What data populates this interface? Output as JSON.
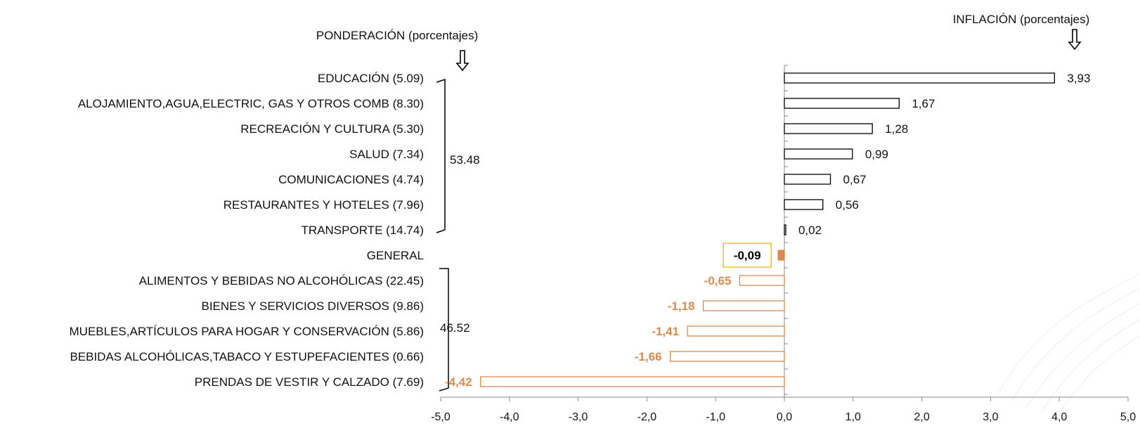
{
  "chart_data": {
    "type": "bar",
    "orientation": "horizontal",
    "annotations": {
      "left_header": "PONDERACIÓN (porcentajes)",
      "right_header": "INFLACIÓN (porcentajes)",
      "group_upper_total": "53.48",
      "group_lower_total": "46.52"
    },
    "categories": [
      "EDUCACIÓN (5.09)",
      "ALOJAMIENTO,AGUA,ELECTRIC, GAS Y OTROS COMB (8.30)",
      "RECREACIÓN Y CULTURA (5.30)",
      "SALUD (7.34)",
      "COMUNICACIONES (4.74)",
      "RESTAURANTES Y HOTELES (7.96)",
      "TRANSPORTE (14.74)",
      "GENERAL",
      "ALIMENTOS Y BEBIDAS NO ALCOHÓLICAS (22.45)",
      "BIENES Y SERVICIOS DIVERSOS (9.86)",
      "MUEBLES,ARTÍCULOS PARA HOGAR Y CONSERVACIÓN (5.86)",
      "BEBIDAS ALCOHÓLICAS,TABACO Y ESTUPEFACIENTES (0.66)",
      "PRENDAS DE VESTIR Y CALZADO (7.69)"
    ],
    "values": [
      3.93,
      1.67,
      1.28,
      0.99,
      0.67,
      0.56,
      0.02,
      -0.09,
      -0.65,
      -1.18,
      -1.41,
      -1.66,
      -4.42
    ],
    "value_labels": [
      "3,93",
      "1,67",
      "1,28",
      "0,99",
      "0,67",
      "0,56",
      "0,02",
      "-0,09",
      "-0,65",
      "-1,18",
      "-1,41",
      "-1,66",
      "-4,42"
    ],
    "xlim": [
      -5,
      5
    ],
    "xticks": [
      "-5,0",
      "-4,0",
      "-3,0",
      "-2,0",
      "-1,0",
      "0,0",
      "1,0",
      "2,0",
      "3,0",
      "4,0",
      "5,0"
    ],
    "grid": false,
    "colors": {
      "positive_outline": "#000000",
      "negative_outline": "#d9894d",
      "negative_label": "#d9894d",
      "general_fill": "#d9894d",
      "general_label_border": "#f5c518"
    }
  }
}
